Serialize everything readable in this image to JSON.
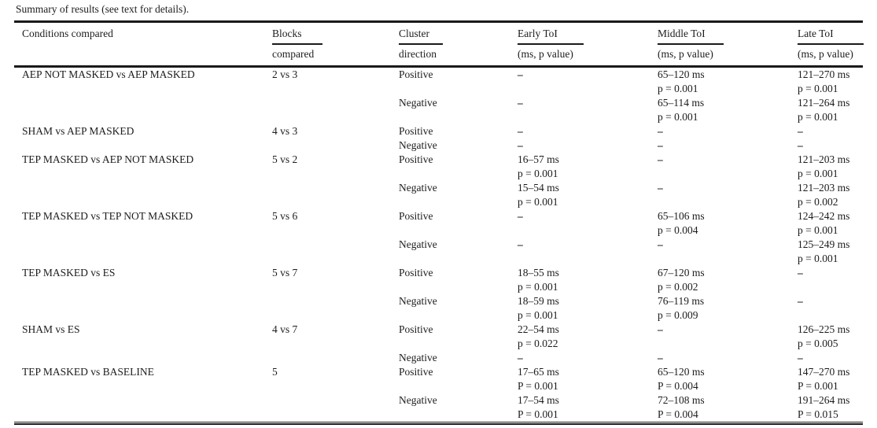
{
  "title": "Summary of results (see text for details).",
  "colors": {
    "text": "#1c1c1c",
    "rule": "#1a1a1a",
    "background": "#ffffff"
  },
  "table": {
    "headers": {
      "conditions": "Conditions compared",
      "blocks_l1": "Blocks",
      "blocks_l2": "compared",
      "cluster_l1": "Cluster",
      "cluster_l2": "direction",
      "early_l1": "Early ToI",
      "early_l2": "(ms, p value)",
      "middle_l1": "Middle ToI",
      "middle_l2": "(ms, p value)",
      "late_l1": "Late ToI",
      "late_l2": "(ms, p value)"
    },
    "groups": [
      {
        "condition": "AEP NOT MASKED vs AEP MASKED",
        "blocks": "2 vs 3",
        "rows": [
          {
            "direction": "Positive",
            "early": "–",
            "middle": "65–120 ms\np = 0.001",
            "late": "121–270 ms\np = 0.001"
          },
          {
            "direction": "Negative",
            "early": "–",
            "middle": "65–114 ms\np = 0.001",
            "late": "121–264 ms\np = 0.001"
          }
        ]
      },
      {
        "condition": "SHAM vs AEP MASKED",
        "blocks": "4 vs 3",
        "rows": [
          {
            "direction": "Positive",
            "early": "–",
            "middle": "–",
            "late": "–"
          },
          {
            "direction": "Negative",
            "early": "–",
            "middle": "–",
            "late": "–"
          }
        ]
      },
      {
        "condition": "TEP MASKED vs AEP NOT MASKED",
        "blocks": "5 vs 2",
        "rows": [
          {
            "direction": "Positive",
            "early": "16–57 ms\np = 0.001",
            "middle": "–",
            "late": "121–203 ms\np = 0.001"
          },
          {
            "direction": "Negative",
            "early": "15–54 ms\np = 0.001",
            "middle": "–",
            "late": "121–203 ms\np = 0.002"
          }
        ]
      },
      {
        "condition": "TEP MASKED vs TEP NOT MASKED",
        "blocks": "5 vs 6",
        "rows": [
          {
            "direction": "Positive",
            "early": "–",
            "middle": "65–106 ms\np = 0.004",
            "late": "124–242 ms\np = 0.001"
          },
          {
            "direction": "Negative",
            "early": "–",
            "middle": "–",
            "late": "125–249 ms\np = 0.001"
          }
        ]
      },
      {
        "condition": "TEP MASKED vs ES",
        "blocks": "5 vs 7",
        "rows": [
          {
            "direction": "Positive",
            "early": "18–55 ms\np = 0.001",
            "middle": "67–120 ms\np = 0.002",
            "late": "–"
          },
          {
            "direction": "Negative",
            "early": "18–59 ms\np = 0.001",
            "middle": "76–119 ms\np = 0.009",
            "late": "–"
          }
        ]
      },
      {
        "condition": "SHAM vs ES",
        "blocks": "4 vs 7",
        "rows": [
          {
            "direction": "Positive",
            "early": "22–54 ms\np = 0.022",
            "middle": "–",
            "late": "126–225 ms\np = 0.005"
          },
          {
            "direction": "Negative",
            "early": "–",
            "middle": "–",
            "late": "–"
          }
        ]
      },
      {
        "condition": "TEP MASKED vs BASELINE",
        "blocks": "5",
        "rows": [
          {
            "direction": "Positive",
            "early": "17–65 ms\nP = 0.001",
            "middle": "65–120 ms\nP = 0.004",
            "late": "147–270 ms\nP = 0.001"
          },
          {
            "direction": "Negative",
            "early": "17–54 ms\nP = 0.001",
            "middle": "72–108 ms\nP = 0.004",
            "late": "191–264 ms\nP = 0.015"
          }
        ]
      }
    ]
  }
}
